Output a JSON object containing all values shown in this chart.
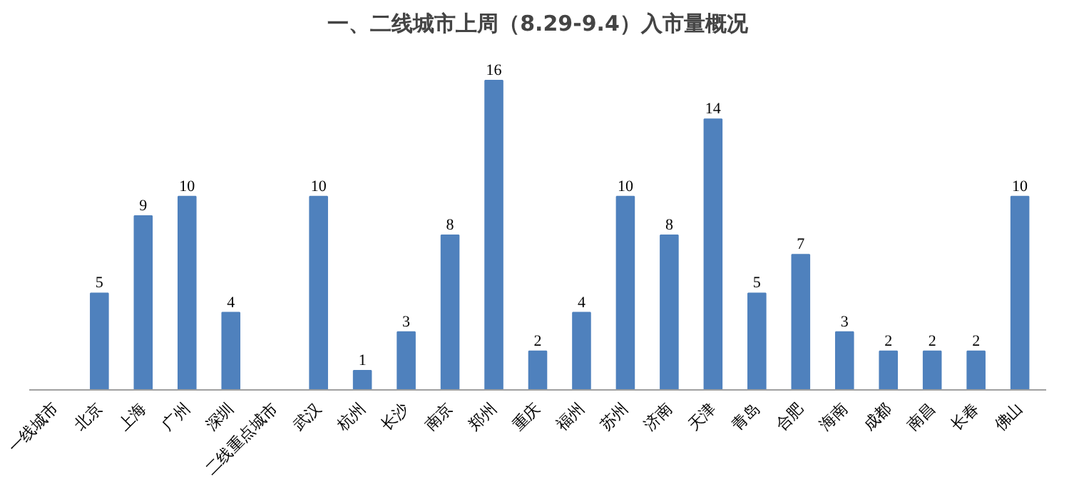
{
  "chart_data": {
    "type": "bar",
    "title": "一、二线城市上周（8.29-9.4）入市量概况",
    "categories": [
      "一线城市",
      "北京",
      "上海",
      "广州",
      "深圳",
      "二线重点城市",
      "武汉",
      "杭州",
      "长沙",
      "南京",
      "郑州",
      "重庆",
      "福州",
      "苏州",
      "济南",
      "天津",
      "青岛",
      "合肥",
      "海南",
      "成都",
      "南昌",
      "长春",
      "佛山"
    ],
    "values": [
      null,
      5,
      9,
      10,
      4,
      null,
      10,
      1,
      3,
      8,
      16,
      2,
      4,
      10,
      8,
      14,
      5,
      7,
      3,
      2,
      2,
      2,
      10
    ],
    "color": "#4f81bd",
    "data_labels": true,
    "tick_labels": "x"
  }
}
